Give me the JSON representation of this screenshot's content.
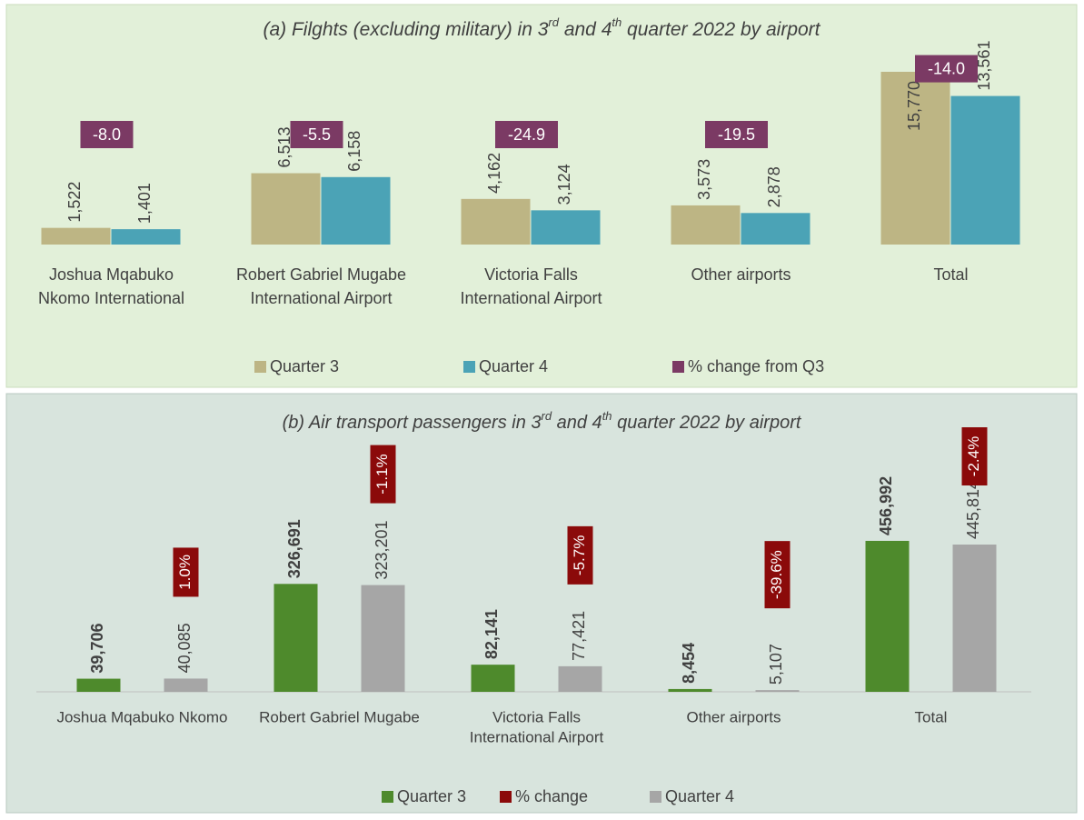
{
  "chart_data": [
    {
      "type": "bar",
      "title": [
        "(a) Filghts (excluding military) in 3",
        "rd",
        " and 4",
        "th",
        " quarter 2022 by airport"
      ],
      "categories": [
        [
          "Joshua Mqabuko",
          "Nkomo International"
        ],
        [
          "Robert Gabriel Mugabe",
          "International Airport"
        ],
        [
          "Victoria Falls",
          "International Airport"
        ],
        [
          "Other airports"
        ],
        [
          "Total"
        ]
      ],
      "series": [
        {
          "name": "Quarter 3",
          "color": "#bdb584",
          "values": [
            1522,
            6513,
            4162,
            3573,
            15770
          ],
          "value_labels": [
            "1,522",
            "6,513",
            "4,162",
            "3,573",
            "15,770"
          ]
        },
        {
          "name": "Quarter 4",
          "color": "#4ba3b6",
          "values": [
            1401,
            6158,
            3124,
            2878,
            13561
          ],
          "value_labels": [
            "1,401",
            "6,158",
            "3,124",
            "2,878",
            "13,561"
          ]
        },
        {
          "name": "% change from Q3",
          "color": "#7b3a64",
          "kind": "label-box",
          "values": [
            -8.0,
            -5.5,
            -24.9,
            -19.5,
            -14.0
          ],
          "value_labels": [
            "-8.0",
            "-5.5",
            "-24.9",
            "-19.5",
            "-14.0"
          ]
        }
      ],
      "ylim": [
        0,
        20000
      ]
    },
    {
      "type": "bar",
      "title": [
        "(b) Air transport passengers in 3",
        "rd",
        " and 4",
        "th",
        " quarter 2022 by airport"
      ],
      "categories": [
        [
          "Joshua Mqabuko Nkomo"
        ],
        [
          "Robert Gabriel Mugabe"
        ],
        [
          "Victoria Falls",
          "International Airport"
        ],
        [
          "Other airports"
        ],
        [
          "Total"
        ]
      ],
      "series": [
        {
          "name": "Quarter 3",
          "color": "#4e8a2c",
          "bold": true,
          "values": [
            39706,
            326691,
            82141,
            8454,
            456992
          ],
          "value_labels": [
            "39,706",
            "326,691",
            "82,141",
            "8,454",
            "456,992"
          ]
        },
        {
          "name": "% change",
          "color": "#8b0a0a",
          "kind": "label-box",
          "values": [
            1.0,
            -1.1,
            -5.7,
            -39.6,
            -2.4
          ],
          "value_labels": [
            "1.0%",
            "-1.1%",
            "-5.7%",
            "-39.6%",
            "-2.4%"
          ]
        },
        {
          "name": "Quarter 4",
          "color": "#a6a6a6",
          "values": [
            40085,
            323201,
            77421,
            5107,
            445814
          ],
          "value_labels": [
            "40,085",
            "323,201",
            "77,421",
            "5,107",
            "445,814"
          ]
        }
      ],
      "ylim": [
        0,
        600000
      ]
    }
  ]
}
